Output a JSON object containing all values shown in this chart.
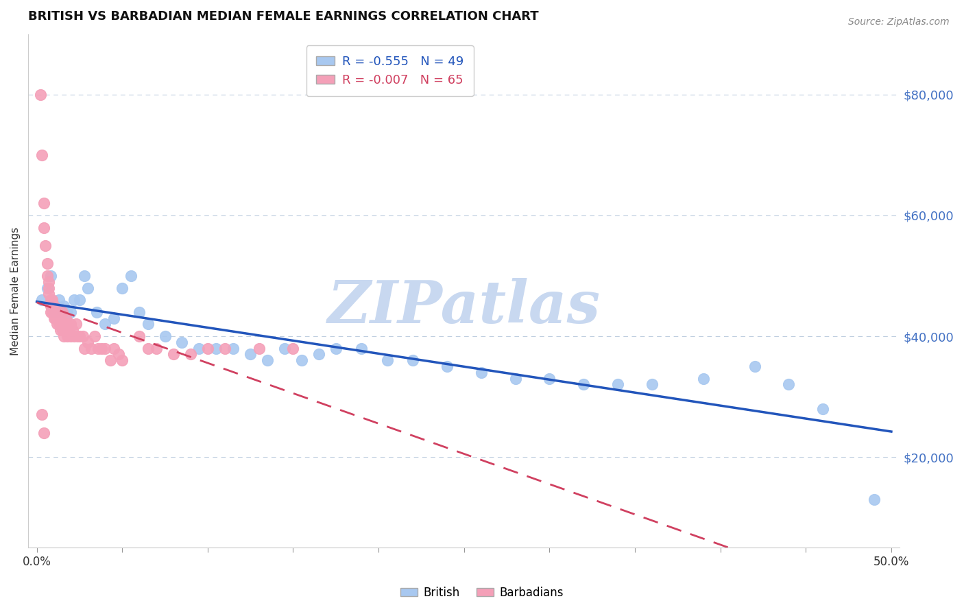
{
  "title": "BRITISH VS BARBADIAN MEDIAN FEMALE EARNINGS CORRELATION CHART",
  "source": "Source: ZipAtlas.com",
  "ylabel": "Median Female Earnings",
  "xlim": [
    -0.005,
    0.505
  ],
  "ylim": [
    5000,
    90000
  ],
  "yticks": [
    20000,
    40000,
    60000,
    80000
  ],
  "ytick_labels": [
    "$20,000",
    "$40,000",
    "$60,000",
    "$80,000"
  ],
  "xticks": [
    0.0,
    0.05,
    0.1,
    0.15,
    0.2,
    0.25,
    0.3,
    0.35,
    0.4,
    0.45,
    0.5
  ],
  "xtick_labels": [
    "0.0%",
    "",
    "",
    "",
    "",
    "",
    "",
    "",
    "",
    "",
    "50.0%"
  ],
  "british_R": -0.555,
  "british_N": 49,
  "barbadian_R": -0.007,
  "barbadian_N": 65,
  "british_color": "#a8c8f0",
  "barbadian_color": "#f4a0b8",
  "british_line_color": "#2255bb",
  "barbadian_line_color": "#d04060",
  "watermark": "ZIPatlas",
  "watermark_color": "#c8d8f0",
  "british_x": [
    0.003,
    0.006,
    0.008,
    0.01,
    0.011,
    0.012,
    0.013,
    0.014,
    0.015,
    0.016,
    0.018,
    0.02,
    0.022,
    0.025,
    0.028,
    0.03,
    0.035,
    0.04,
    0.045,
    0.05,
    0.055,
    0.06,
    0.065,
    0.075,
    0.085,
    0.095,
    0.105,
    0.115,
    0.125,
    0.135,
    0.145,
    0.155,
    0.165,
    0.175,
    0.19,
    0.205,
    0.22,
    0.24,
    0.26,
    0.28,
    0.3,
    0.32,
    0.34,
    0.36,
    0.39,
    0.42,
    0.44,
    0.46,
    0.49
  ],
  "british_y": [
    46000,
    48000,
    50000,
    44000,
    45000,
    44000,
    46000,
    44000,
    44000,
    45000,
    44000,
    44000,
    46000,
    46000,
    50000,
    48000,
    44000,
    42000,
    43000,
    48000,
    50000,
    44000,
    42000,
    40000,
    39000,
    38000,
    38000,
    38000,
    37000,
    36000,
    38000,
    36000,
    37000,
    38000,
    38000,
    36000,
    36000,
    35000,
    34000,
    33000,
    33000,
    32000,
    32000,
    32000,
    33000,
    35000,
    32000,
    28000,
    13000
  ],
  "barbadian_x": [
    0.002,
    0.003,
    0.004,
    0.004,
    0.005,
    0.006,
    0.006,
    0.007,
    0.007,
    0.007,
    0.008,
    0.008,
    0.008,
    0.009,
    0.009,
    0.01,
    0.01,
    0.01,
    0.011,
    0.011,
    0.012,
    0.012,
    0.013,
    0.013,
    0.014,
    0.014,
    0.015,
    0.015,
    0.015,
    0.016,
    0.016,
    0.017,
    0.018,
    0.018,
    0.019,
    0.02,
    0.02,
    0.021,
    0.022,
    0.023,
    0.024,
    0.025,
    0.027,
    0.028,
    0.03,
    0.032,
    0.034,
    0.036,
    0.038,
    0.04,
    0.043,
    0.045,
    0.048,
    0.05,
    0.06,
    0.065,
    0.07,
    0.08,
    0.09,
    0.1,
    0.11,
    0.13,
    0.15,
    0.003,
    0.004
  ],
  "barbadian_y": [
    80000,
    70000,
    62000,
    58000,
    55000,
    52000,
    50000,
    49000,
    48000,
    47000,
    46000,
    45000,
    44000,
    46000,
    44000,
    45000,
    44000,
    43000,
    44000,
    43000,
    44000,
    42000,
    43000,
    42000,
    43000,
    41000,
    44000,
    42000,
    41000,
    42000,
    40000,
    43000,
    42000,
    40000,
    41000,
    42000,
    40000,
    41000,
    40000,
    42000,
    40000,
    40000,
    40000,
    38000,
    39000,
    38000,
    40000,
    38000,
    38000,
    38000,
    36000,
    38000,
    37000,
    36000,
    40000,
    38000,
    38000,
    37000,
    37000,
    38000,
    38000,
    38000,
    38000,
    27000,
    24000
  ]
}
